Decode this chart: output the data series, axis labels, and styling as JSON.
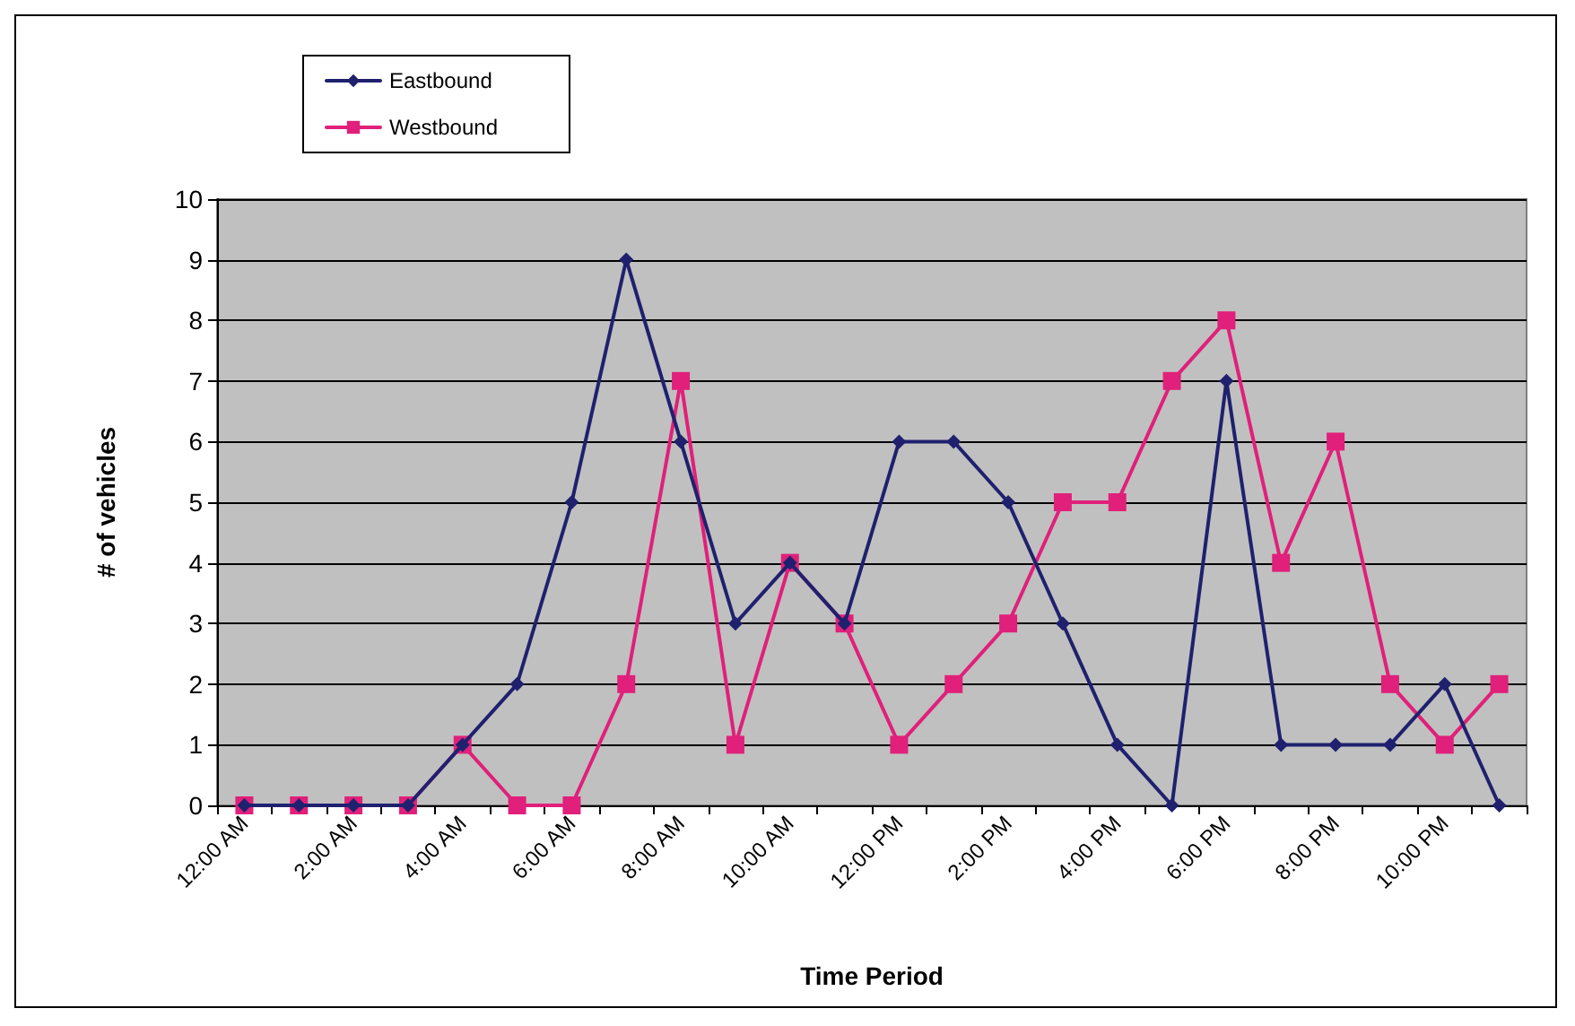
{
  "chart_data": {
    "type": "line",
    "xlabel": "Time Period",
    "ylabel": "# of vehicles",
    "categories": [
      "12:00 AM",
      null,
      "2:00 AM",
      null,
      "4:00 AM",
      null,
      "6:00 AM",
      null,
      "8:00 AM",
      null,
      "10:00 AM",
      null,
      "12:00 PM",
      null,
      "2:00 PM",
      null,
      "4:00 PM",
      null,
      "6:00 PM",
      null,
      "8:00 PM",
      null,
      "10:00 PM",
      null
    ],
    "series": [
      {
        "name": "Eastbound",
        "color": "#1f216e",
        "marker": "diamond",
        "values": [
          0,
          0,
          0,
          0,
          1,
          2,
          5,
          9,
          6,
          3,
          4,
          3,
          6,
          6,
          5,
          3,
          1,
          0,
          7,
          1,
          1,
          1,
          2,
          0
        ]
      },
      {
        "name": "Westbound",
        "color": "#e0207a",
        "marker": "square",
        "values": [
          0,
          0,
          0,
          0,
          1,
          0,
          0,
          2,
          7,
          1,
          4,
          3,
          1,
          2,
          3,
          5,
          5,
          7,
          8,
          4,
          6,
          2,
          1,
          2
        ]
      }
    ],
    "ylim": [
      0,
      10
    ],
    "yticks": [
      0,
      1,
      2,
      3,
      4,
      5,
      6,
      7,
      8,
      9,
      10
    ],
    "grid": "y",
    "legend": "top left",
    "line_style": "solid"
  }
}
